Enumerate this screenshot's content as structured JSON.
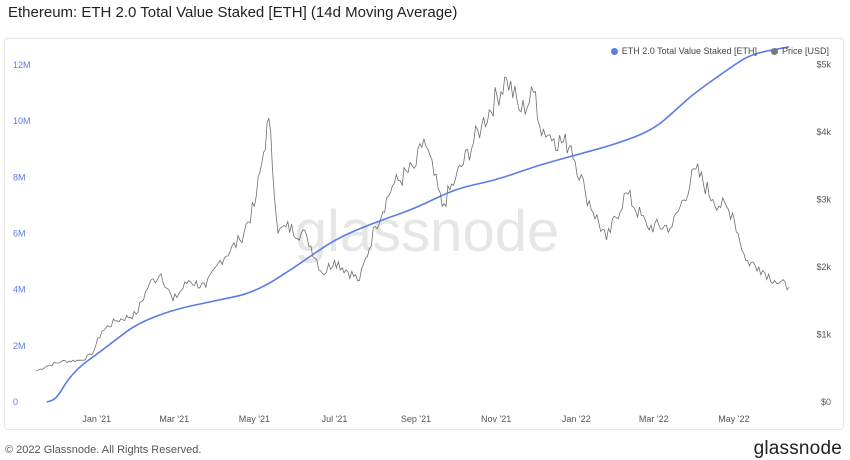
{
  "title": "Ethereum: ETH 2.0 Total Value Staked [ETH] (14d Moving Average)",
  "watermark": "glassnode",
  "footer": {
    "copyright": "© 2022 Glassnode. All Rights Reserved.",
    "brand": "glassnode"
  },
  "colors": {
    "staked": "#5b7be6",
    "price": "#6e6e6e",
    "left_axis_text": "#5b7be6",
    "right_axis_text": "#555555"
  },
  "legend": [
    {
      "label": "ETH 2.0 Total Value Staked [ETH]",
      "color": "#5b7be6"
    },
    {
      "label": "Price [USD]",
      "color": "#777777"
    }
  ],
  "chart_data": {
    "type": "line",
    "title": "Ethereum: ETH 2.0 Total Value Staked [ETH] (14d Moving Average)",
    "x_range": [
      "2020-11-15",
      "2022-06-15"
    ],
    "x_ticks": [
      "Jan '21",
      "Mar '21",
      "May '21",
      "Jul '21",
      "Sep '21",
      "Nov '21",
      "Jan '22",
      "Mar '22",
      "May '22"
    ],
    "x_tick_dates": [
      "2021-01-01",
      "2021-03-01",
      "2021-05-01",
      "2021-07-01",
      "2021-09-01",
      "2021-11-01",
      "2022-01-01",
      "2022-03-01",
      "2022-05-01"
    ],
    "y_left": {
      "ticks": [
        "0",
        "2M",
        "4M",
        "6M",
        "8M",
        "10M",
        "12M"
      ],
      "tick_values": [
        0,
        2000000,
        4000000,
        6000000,
        8000000,
        10000000,
        12000000
      ],
      "range": [
        0,
        12500000
      ]
    },
    "y_right": {
      "ticks": [
        "$0",
        "$1k",
        "$2k",
        "$3k",
        "$4k",
        "$5k"
      ],
      "tick_values": [
        0,
        1000,
        2000,
        3000,
        4000,
        5000
      ],
      "range": [
        0,
        5200
      ]
    },
    "grid": false,
    "legend_position": "top-right",
    "series": [
      {
        "name": "ETH 2.0 Total Value Staked [ETH]",
        "axis": "left",
        "points": [
          [
            "2020-11-24",
            0
          ],
          [
            "2020-12-01",
            100000
          ],
          [
            "2020-12-10",
            800000
          ],
          [
            "2020-12-20",
            1300000
          ],
          [
            "2021-01-01",
            1700000
          ],
          [
            "2021-01-15",
            2200000
          ],
          [
            "2021-02-01",
            2800000
          ],
          [
            "2021-03-01",
            3300000
          ],
          [
            "2021-04-01",
            3600000
          ],
          [
            "2021-05-01",
            3900000
          ],
          [
            "2021-06-01",
            4800000
          ],
          [
            "2021-07-01",
            5800000
          ],
          [
            "2021-08-01",
            6400000
          ],
          [
            "2021-09-01",
            6900000
          ],
          [
            "2021-10-01",
            7600000
          ],
          [
            "2021-11-01",
            7900000
          ],
          [
            "2021-12-01",
            8400000
          ],
          [
            "2022-01-01",
            8800000
          ],
          [
            "2022-02-01",
            9200000
          ],
          [
            "2022-03-01",
            9700000
          ],
          [
            "2022-03-20",
            10500000
          ],
          [
            "2022-04-01",
            11000000
          ],
          [
            "2022-05-01",
            12000000
          ],
          [
            "2022-05-15",
            12400000
          ],
          [
            "2022-06-12",
            12650000
          ]
        ]
      },
      {
        "name": "Price [USD]",
        "axis": "right",
        "points": [
          [
            "2020-11-16",
            460
          ],
          [
            "2020-11-25",
            540
          ],
          [
            "2020-12-05",
            600
          ],
          [
            "2020-12-20",
            620
          ],
          [
            "2020-12-28",
            700
          ],
          [
            "2021-01-05",
            1050
          ],
          [
            "2021-01-15",
            1200
          ],
          [
            "2021-01-31",
            1300
          ],
          [
            "2021-02-10",
            1750
          ],
          [
            "2021-02-19",
            1900
          ],
          [
            "2021-02-28",
            1500
          ],
          [
            "2021-03-12",
            1800
          ],
          [
            "2021-03-25",
            1700
          ],
          [
            "2021-04-05",
            2100
          ],
          [
            "2021-04-20",
            2400
          ],
          [
            "2021-05-01",
            2900
          ],
          [
            "2021-05-08",
            3700
          ],
          [
            "2021-05-12",
            4200
          ],
          [
            "2021-05-19",
            2500
          ],
          [
            "2021-05-25",
            2600
          ],
          [
            "2021-06-10",
            2450
          ],
          [
            "2021-06-22",
            1900
          ],
          [
            "2021-07-01",
            2100
          ],
          [
            "2021-07-20",
            1800
          ],
          [
            "2021-08-01",
            2600
          ],
          [
            "2021-08-14",
            3200
          ],
          [
            "2021-09-01",
            3500
          ],
          [
            "2021-09-07",
            3900
          ],
          [
            "2021-09-21",
            2900
          ],
          [
            "2021-10-01",
            3300
          ],
          [
            "2021-10-21",
            4100
          ],
          [
            "2021-11-09",
            4800
          ],
          [
            "2021-11-20",
            4300
          ],
          [
            "2021-12-01",
            4600
          ],
          [
            "2021-12-04",
            4100
          ],
          [
            "2021-12-15",
            3900
          ],
          [
            "2021-12-28",
            3800
          ],
          [
            "2022-01-08",
            3100
          ],
          [
            "2022-01-24",
            2400
          ],
          [
            "2022-02-08",
            3100
          ],
          [
            "2022-02-24",
            2600
          ],
          [
            "2022-03-15",
            2600
          ],
          [
            "2022-04-02",
            3450
          ],
          [
            "2022-04-15",
            3000
          ],
          [
            "2022-04-30",
            2800
          ],
          [
            "2022-05-10",
            2100
          ],
          [
            "2022-05-20",
            2000
          ],
          [
            "2022-06-01",
            1800
          ],
          [
            "2022-06-12",
            1700
          ]
        ]
      }
    ]
  }
}
